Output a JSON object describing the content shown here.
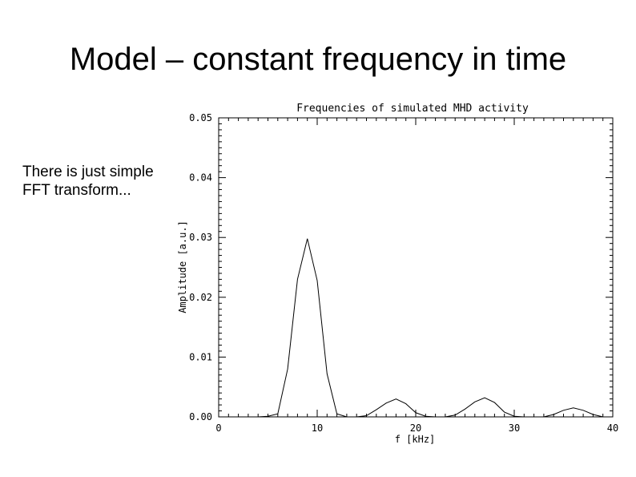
{
  "slide": {
    "title": "Model – constant frequency in time",
    "body_lines": [
      "There is just simple",
      "FFT transform..."
    ]
  },
  "chart_data": {
    "type": "line",
    "title": "Frequencies of simulated MHD activity",
    "xlabel": "f [kHz]",
    "ylabel": "Amplitude [a.u.]",
    "xlim": [
      0,
      40
    ],
    "ylim": [
      0,
      0.05
    ],
    "x_ticks": [
      0,
      10,
      20,
      30,
      40
    ],
    "x_tick_labels": [
      "0",
      "10",
      "20",
      "30",
      "40"
    ],
    "y_ticks": [
      0,
      0.01,
      0.02,
      0.03,
      0.04,
      0.05
    ],
    "y_tick_labels": [
      "0.00",
      "0.01",
      "0.02",
      "0.03",
      "0.04",
      "0.05"
    ],
    "grid": false,
    "line_color": "#000000",
    "series": [
      {
        "x": [
          0,
          1,
          2,
          3,
          4,
          5,
          6,
          7,
          8,
          9,
          10,
          11,
          12,
          13,
          14,
          15,
          16,
          17,
          18,
          19,
          20,
          21,
          22,
          23,
          24,
          25,
          26,
          27,
          28,
          29,
          30,
          31,
          32,
          33,
          34,
          35,
          36,
          37,
          38,
          39,
          40
        ],
        "y": [
          0,
          0,
          0,
          0,
          0,
          0.0001,
          0.0005,
          0.008,
          0.023,
          0.0298,
          0.0228,
          0.0072,
          0.0005,
          0,
          0,
          0.0002,
          0.0012,
          0.0023,
          0.003,
          0.0022,
          0.0007,
          0.0001,
          0,
          0,
          0.0003,
          0.0013,
          0.0025,
          0.0032,
          0.0024,
          0.0008,
          0.0001,
          0,
          0,
          0,
          0.0004,
          0.0011,
          0.0015,
          0.0011,
          0.0004,
          0,
          0
        ]
      }
    ]
  }
}
